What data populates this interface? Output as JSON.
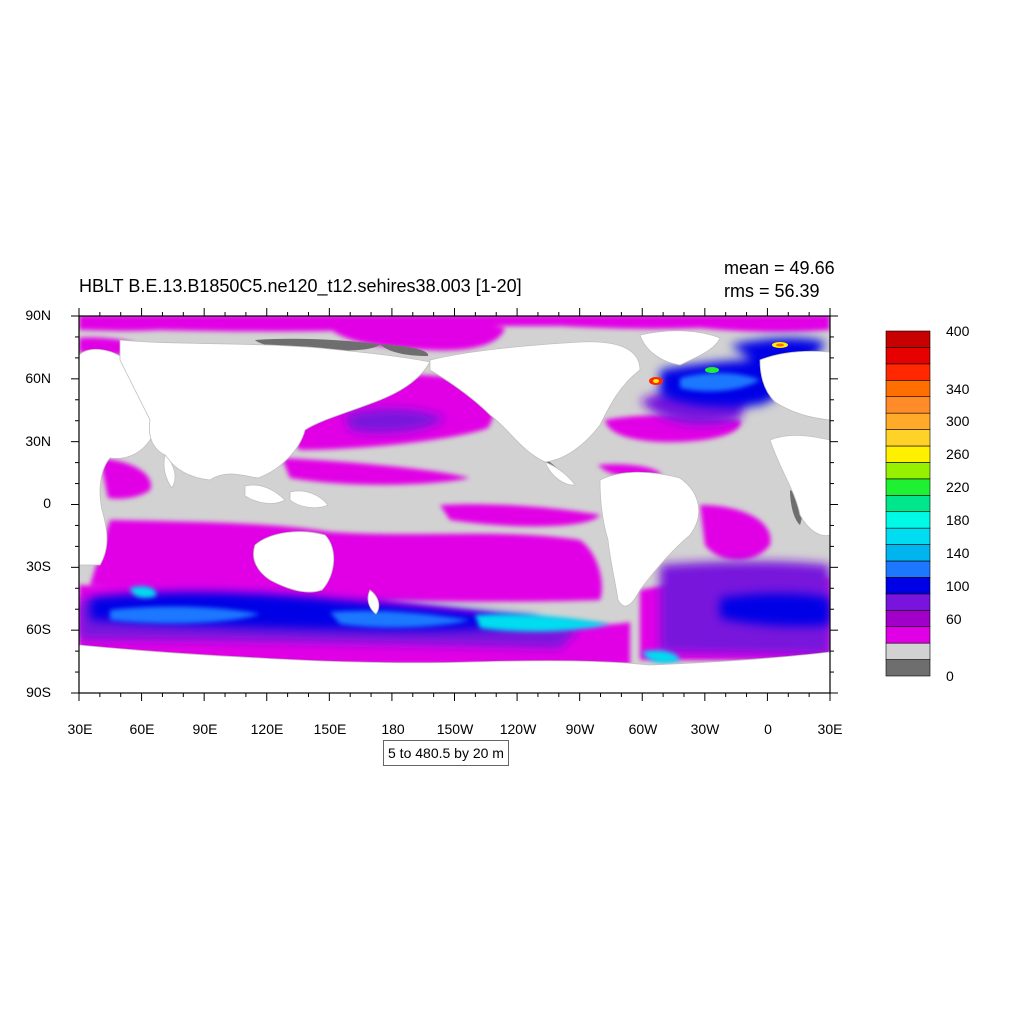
{
  "title": "HBLT B.E.13.B1850C5.ne120_t12.sehires38.003 [1-20]",
  "stats": {
    "mean_label": "mean =",
    "mean_value": "49.66",
    "rms_label": "rms =",
    "rms_value": "56.39"
  },
  "contour_info": "5 to 480.5 by 20 m",
  "axes": {
    "lat_ticks": [
      "90N",
      "60N",
      "30N",
      "0",
      "30S",
      "60S",
      "90S"
    ],
    "lon_ticks": [
      "30E",
      "60E",
      "90E",
      "120E",
      "150E",
      "180",
      "150W",
      "120W",
      "90W",
      "60W",
      "30W",
      "0",
      "30E"
    ]
  },
  "colorbar": {
    "colors": [
      "#6e6e6e",
      "#d2d2d2",
      "#e100e6",
      "#a000c8",
      "#7814dc",
      "#0000e6",
      "#1e78ff",
      "#00b4f0",
      "#00dcf0",
      "#00fae6",
      "#00e68c",
      "#1ef032",
      "#96f000",
      "#fff000",
      "#ffd228",
      "#ffaa28",
      "#ff8c28",
      "#ff6e00",
      "#ff2800",
      "#e60000",
      "#c80000"
    ],
    "labels": [
      {
        "text": "0",
        "index": 0
      },
      {
        "text": "60",
        "index": 3
      },
      {
        "text": "100",
        "index": 5
      },
      {
        "text": "140",
        "index": 7
      },
      {
        "text": "180",
        "index": 9
      },
      {
        "text": "220",
        "index": 11
      },
      {
        "text": "260",
        "index": 13
      },
      {
        "text": "300",
        "index": 15
      },
      {
        "text": "340",
        "index": 17
      },
      {
        "text": "400",
        "index": 20
      }
    ]
  },
  "chart_data": {
    "type": "heatmap",
    "projection": "cylindrical-equidistant",
    "lon_range": [
      30,
      390
    ],
    "lat_range": [
      -90,
      90
    ],
    "summary": {
      "mean": 49.66,
      "rms": 56.39
    },
    "contour_levels": {
      "min": 5,
      "max": 480.5,
      "step": 20,
      "units": "m"
    }
  }
}
